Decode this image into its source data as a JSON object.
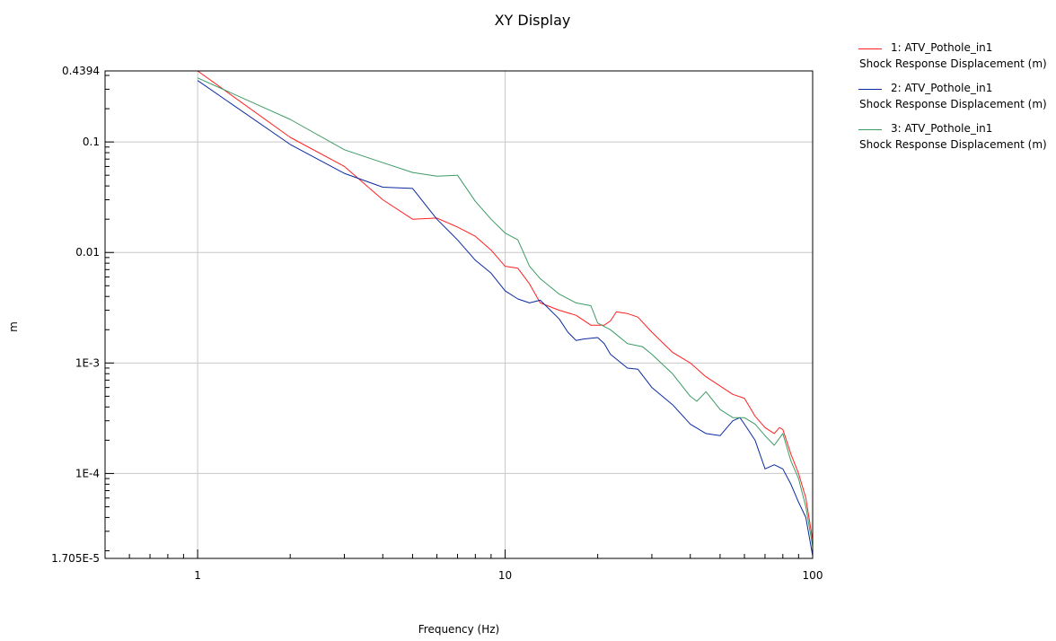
{
  "chart_data": {
    "type": "line",
    "title": "XY Display",
    "xlabel": "Frequency (Hz)",
    "ylabel": "m",
    "x_scale": "log",
    "y_scale": "log",
    "xlim": [
      0.5,
      100
    ],
    "ylim": [
      1.705e-05,
      0.4394
    ],
    "grid": true,
    "legend_position": "top-right",
    "x_tick_labels": [
      "1",
      "10",
      "100"
    ],
    "y_tick_labels": [
      "0.4394",
      "0.1",
      "0.01",
      "1E-3",
      "1E-4",
      "1.705E-5"
    ],
    "series": [
      {
        "name": "1: ATV_Pothole_in1",
        "subtitle": "Shock Response Displacement (m)",
        "color": "#ff2020",
        "x": [
          1,
          2,
          3,
          4,
          5,
          6,
          7,
          8,
          9,
          10,
          11,
          12,
          13,
          15,
          17,
          19,
          21,
          22,
          23,
          25,
          27,
          30,
          35,
          40,
          45,
          50,
          55,
          60,
          65,
          70,
          75,
          78,
          80,
          85,
          90,
          95,
          100
        ],
        "y": [
          0.44,
          0.11,
          0.06,
          0.03,
          0.02,
          0.0205,
          0.017,
          0.014,
          0.0105,
          0.0075,
          0.0072,
          0.0052,
          0.0035,
          0.003,
          0.0027,
          0.0022,
          0.0022,
          0.0024,
          0.0029,
          0.0028,
          0.0026,
          0.0019,
          0.00125,
          0.001,
          0.00075,
          0.00062,
          0.00052,
          0.00048,
          0.00033,
          0.00026,
          0.00023,
          0.00026,
          0.00025,
          0.00015,
          0.0001,
          6e-05,
          2.5e-05
        ]
      },
      {
        "name": "2: ATV_Pothole_in1",
        "subtitle": "Shock Response Displacement (m)",
        "color": "#0a2aa0",
        "x": [
          1,
          2,
          3,
          4,
          5,
          6,
          7,
          8,
          9,
          10,
          11,
          12,
          13,
          15,
          16,
          17,
          18,
          20,
          21,
          22,
          25,
          27,
          30,
          35,
          40,
          45,
          50,
          55,
          58,
          60,
          65,
          70,
          75,
          80,
          85,
          90,
          95,
          100
        ],
        "y": [
          0.36,
          0.095,
          0.052,
          0.039,
          0.038,
          0.02,
          0.013,
          0.0085,
          0.0065,
          0.0045,
          0.0038,
          0.0035,
          0.0037,
          0.0025,
          0.0019,
          0.0016,
          0.00165,
          0.0017,
          0.0015,
          0.0012,
          0.0009,
          0.00088,
          0.0006,
          0.00042,
          0.00028,
          0.00023,
          0.00022,
          0.0003,
          0.00032,
          0.00028,
          0.0002,
          0.00011,
          0.00012,
          0.00011,
          8e-05,
          5.5e-05,
          4e-05,
          1.8e-05
        ]
      },
      {
        "name": "3: ATV_Pothole_in1",
        "subtitle": "Shock Response Displacement (m)",
        "color": "#3c9a64",
        "x": [
          1,
          2,
          3,
          4,
          5,
          6,
          7,
          8,
          9,
          10,
          11,
          12,
          13,
          15,
          17,
          19,
          20,
          22,
          25,
          28,
          30,
          35,
          40,
          42,
          45,
          50,
          55,
          60,
          65,
          70,
          75,
          80,
          85,
          90,
          95,
          100
        ],
        "y": [
          0.38,
          0.16,
          0.085,
          0.065,
          0.053,
          0.049,
          0.05,
          0.029,
          0.02,
          0.015,
          0.013,
          0.0075,
          0.0058,
          0.0042,
          0.0035,
          0.0033,
          0.0023,
          0.002,
          0.0015,
          0.0014,
          0.0012,
          0.0008,
          0.0005,
          0.00045,
          0.00055,
          0.00038,
          0.00032,
          0.00032,
          0.00028,
          0.00022,
          0.00018,
          0.00023,
          0.00013,
          9e-05,
          5e-05,
          2.2e-05
        ]
      }
    ]
  }
}
